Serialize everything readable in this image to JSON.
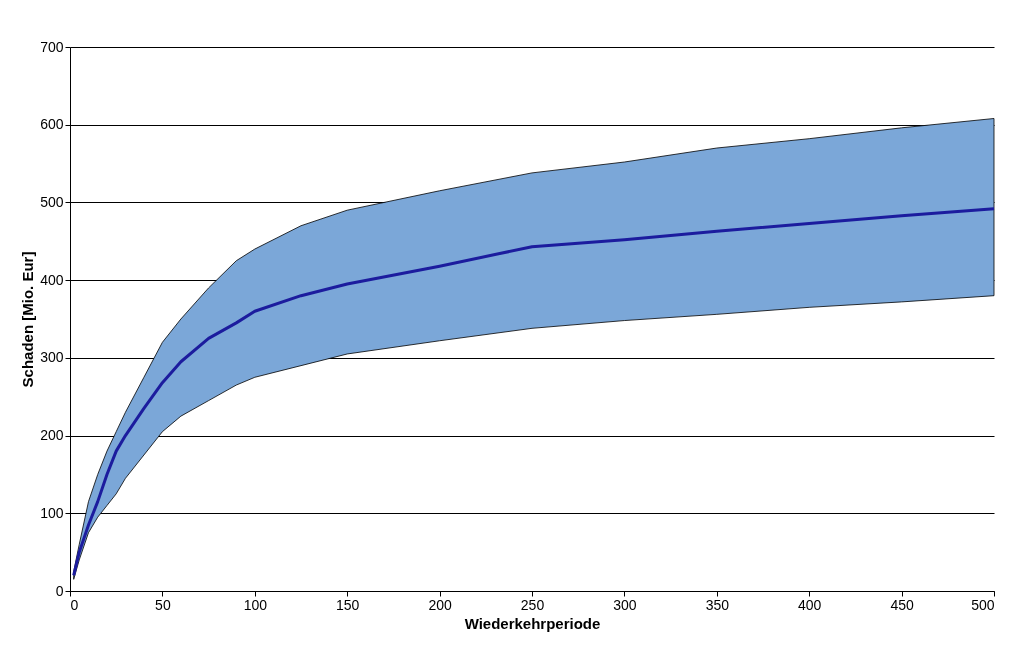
{
  "chart_data": {
    "type": "line",
    "xlabel": "Wiederkehrperiode",
    "ylabel": "Schaden [Mio. Eur]",
    "x": [
      2,
      5,
      10,
      15,
      20,
      25,
      30,
      40,
      50,
      60,
      75,
      90,
      100,
      125,
      150,
      200,
      250,
      300,
      350,
      400,
      450,
      500
    ],
    "series": [
      {
        "color": "#1c1c9e",
        "values": [
          20,
          50,
          85,
          115,
          150,
          180,
          200,
          235,
          268,
          295,
          325,
          345,
          360,
          380,
          395,
          418,
          443,
          452,
          463,
          473,
          483,
          492
        ],
        "lower": [
          15,
          40,
          75,
          95,
          110,
          125,
          145,
          175,
          205,
          225,
          245,
          265,
          275,
          290,
          305,
          322,
          338,
          348,
          356,
          365,
          372,
          380
        ],
        "upper": [
          25,
          60,
          115,
          150,
          180,
          205,
          230,
          275,
          320,
          350,
          390,
          425,
          440,
          470,
          490,
          515,
          538,
          552,
          570,
          582,
          596,
          608
        ]
      }
    ],
    "xlim": [
      0,
      500
    ],
    "xticks": [
      0,
      50,
      100,
      150,
      200,
      250,
      300,
      350,
      400,
      450,
      500
    ],
    "ylim": [
      0,
      700
    ],
    "yticks": [
      0,
      100,
      200,
      300,
      400,
      500,
      600,
      700
    ],
    "grid": "y",
    "marker": "none",
    "line_style": "solid"
  }
}
